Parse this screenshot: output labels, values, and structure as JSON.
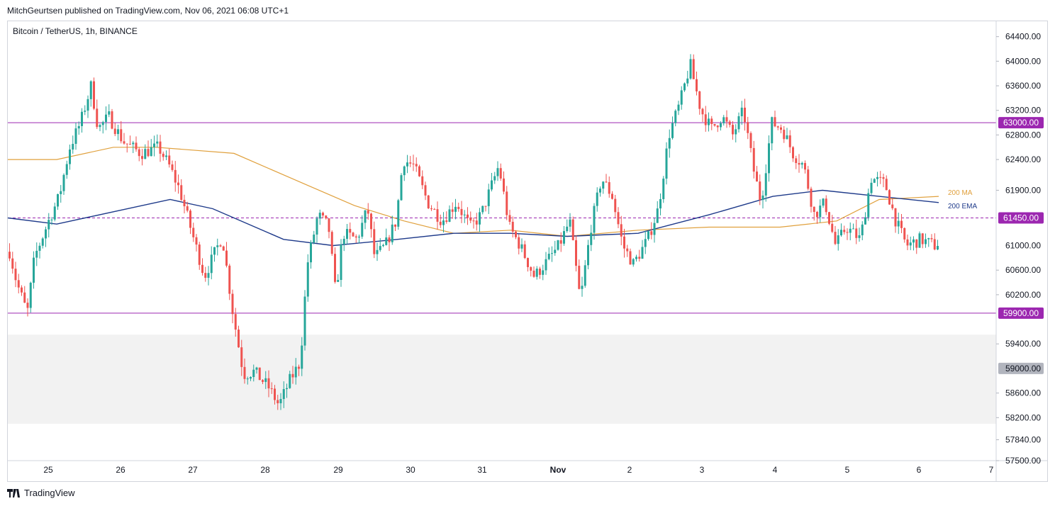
{
  "header": {
    "published": "MitchGeurtsen published on TradingView.com, Nov 06, 2021 06:08 UTC+1"
  },
  "footer": {
    "brand": "TradingView",
    "logo_icon": "tradingview-logo-icon"
  },
  "chart_data": {
    "type": "candlestick",
    "title": "Bitcoin / TetherUS, 1h, BINANCE",
    "ylim": [
      57500,
      64650
    ],
    "y_ticks": [
      "64400.00",
      "64000.00",
      "63600.00",
      "63200.00",
      "62800.00",
      "62400.00",
      "61900.00",
      "60600.00",
      "60200.00",
      "59400.00",
      "58600.00",
      "58200.00",
      "57840.00",
      "57500.00"
    ],
    "x_ticks": [
      "25",
      "26",
      "27",
      "28",
      "29",
      "30",
      "31",
      "Nov",
      "2",
      "3",
      "4",
      "5",
      "6",
      "7"
    ],
    "horizontal_levels": [
      {
        "price": 63000,
        "label": "63000.00",
        "style": "solid",
        "color": "#9c27b0"
      },
      {
        "price": 61450,
        "label": "61450.00",
        "style": "dashed",
        "color": "#9c27b0"
      },
      {
        "price": 59900,
        "label": "59900.00",
        "style": "solid",
        "color": "#9c27b0"
      }
    ],
    "extra_price_labels": [
      {
        "price": 61000,
        "label": "61000.00"
      },
      {
        "price": 59000,
        "label": "59000.00",
        "style": "grey"
      }
    ],
    "zone": {
      "from": 58100,
      "to": 59550,
      "color": "#f2f2f2"
    },
    "indicators": [
      {
        "name": "200 MA",
        "color": "#e0a03c"
      },
      {
        "name": "200 EMA",
        "color": "#1e3a8a"
      }
    ],
    "colors": {
      "up": "#26a69a",
      "down": "#ef5350"
    }
  }
}
